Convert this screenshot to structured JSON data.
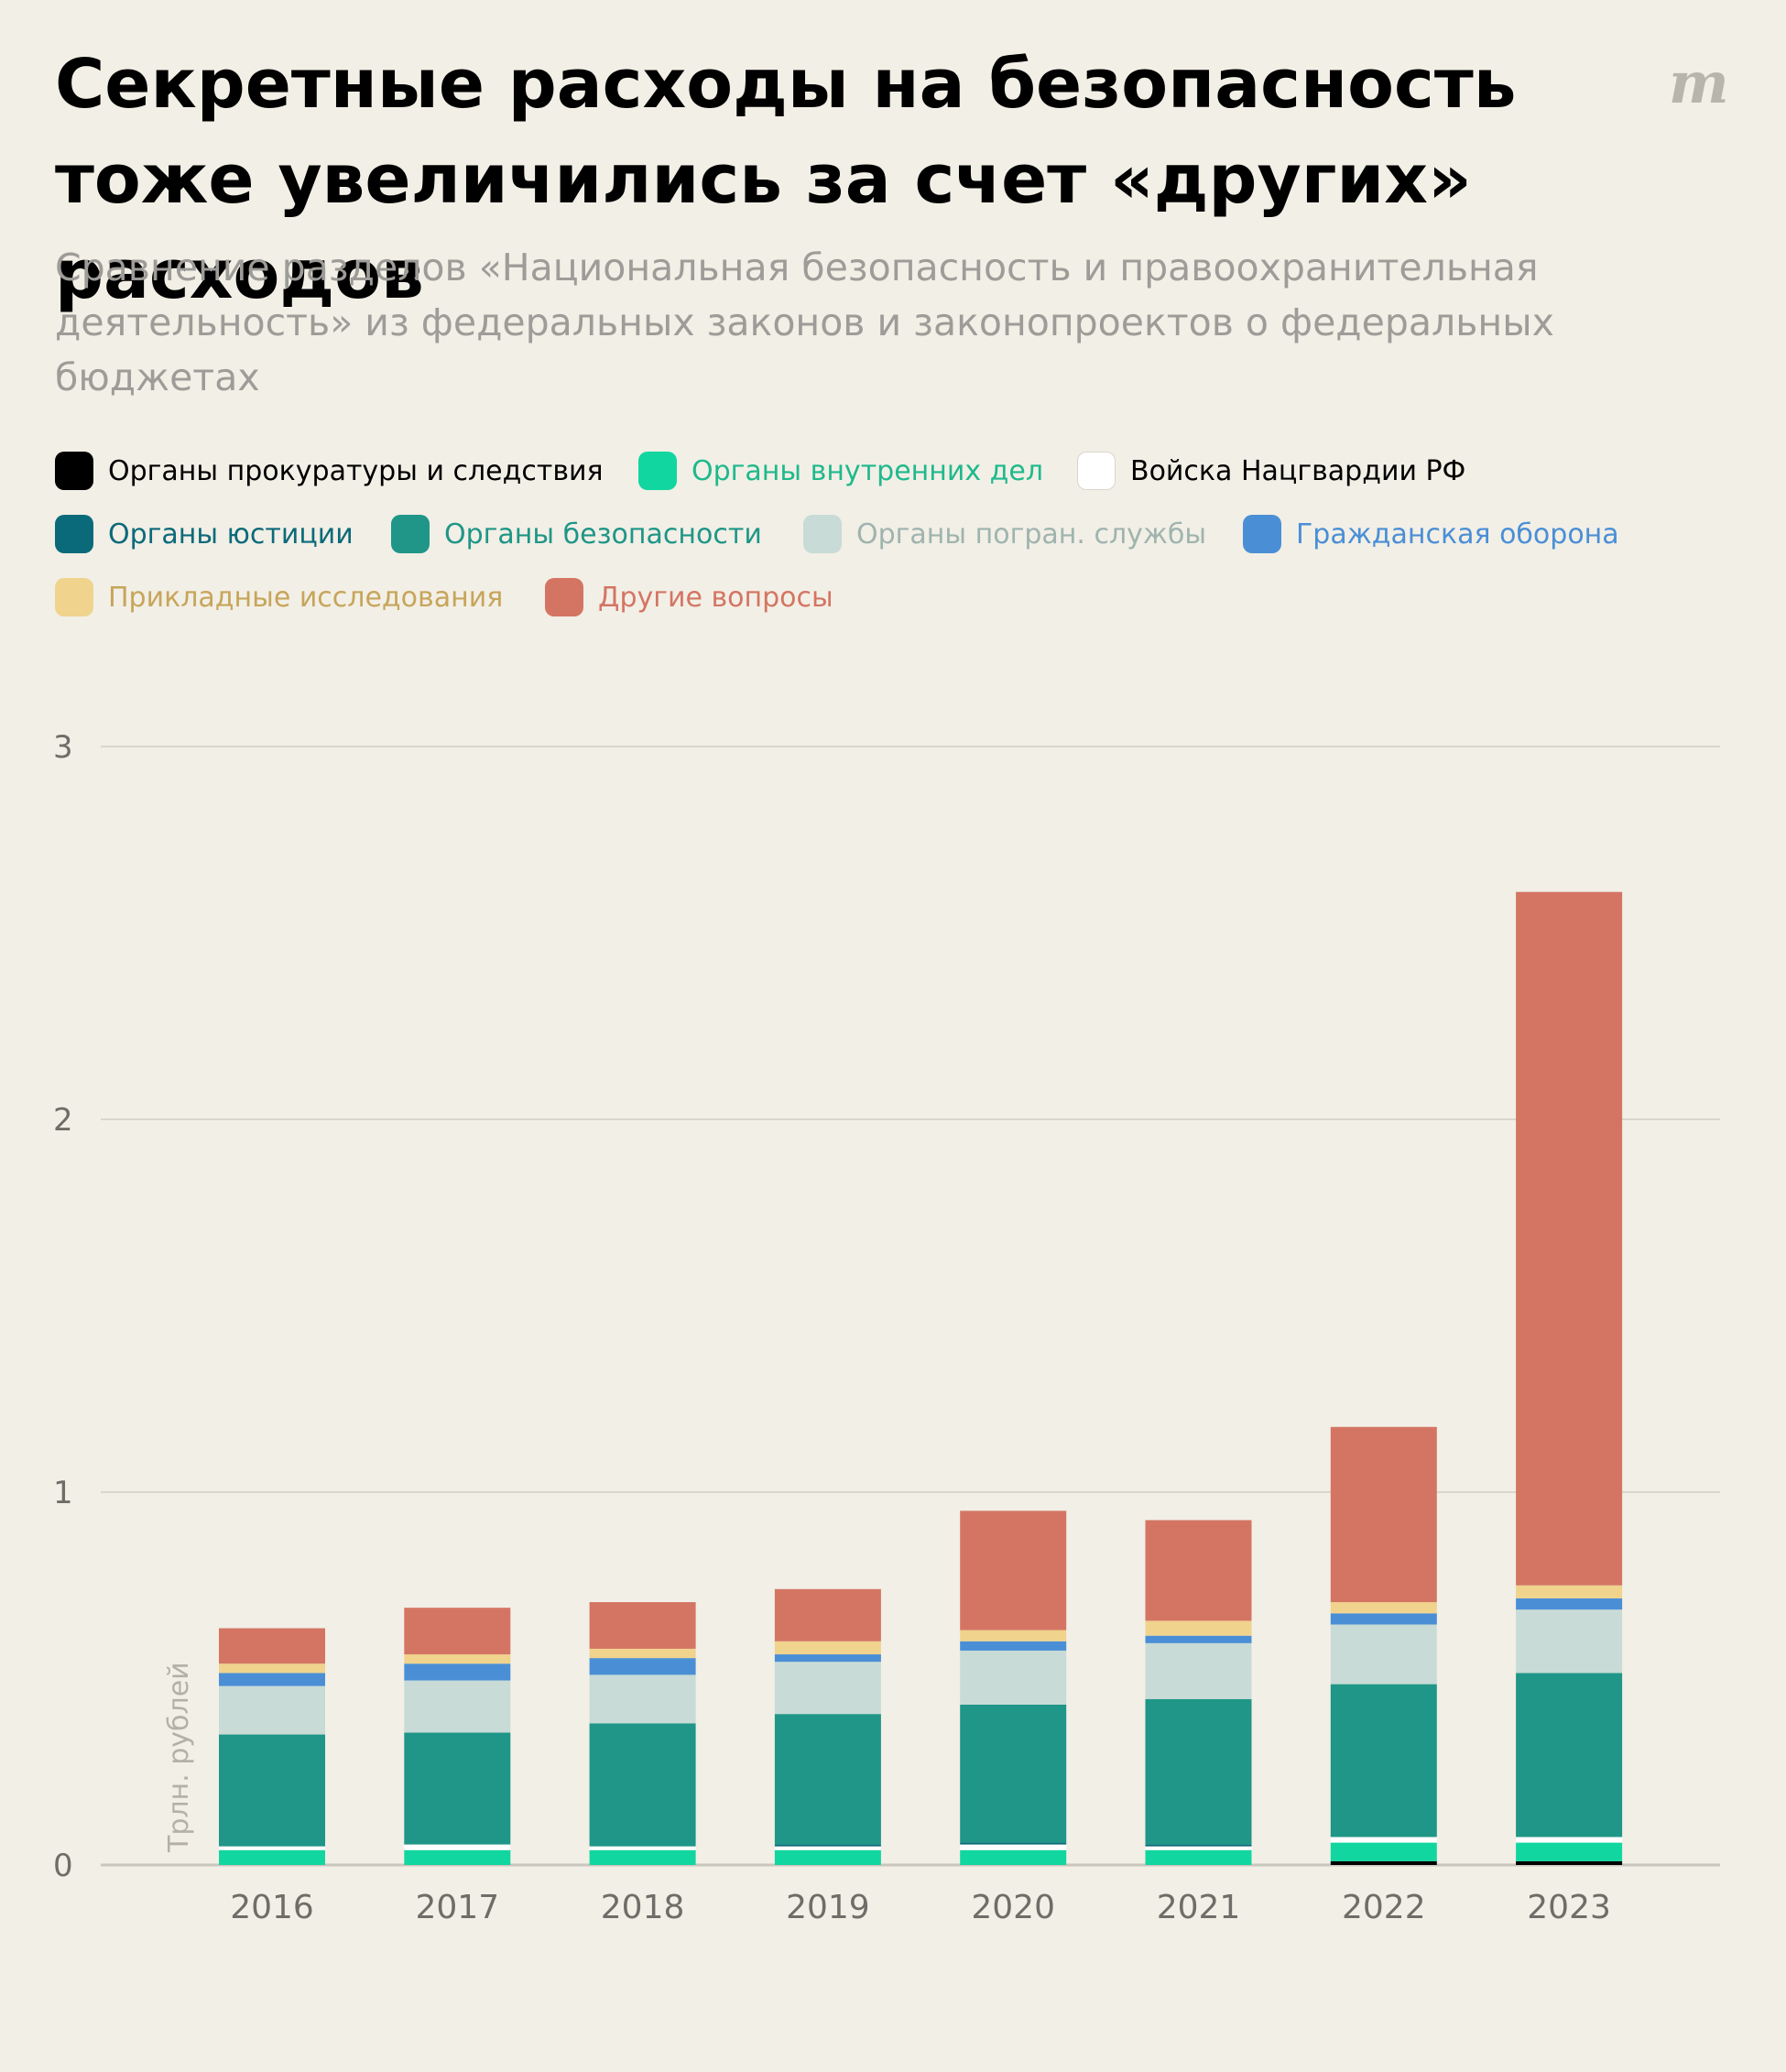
{
  "header": {
    "title": "Секретные расходы на безопасность тоже увеличились за счет «других» расходов",
    "subtitle": "Сравнение разделов «Национальная безопасность и правоохранительная деятельность» из федеральных законов и законопроектов о федеральных бюджетах",
    "logo": "m"
  },
  "legend": [
    {
      "label": "Органы прокуратуры и следствия",
      "color": "#000000",
      "text_color": "#000000"
    },
    {
      "label": "Органы внутренних дел",
      "color": "#12d6a0",
      "text_color": "#1fb98c"
    },
    {
      "label": "Войска Нацгвардии РФ",
      "color": "#ffffff",
      "text_color": "#000000"
    },
    {
      "label": "Органы юстиции",
      "color": "#0b6a7a",
      "text_color": "#0b6a7a"
    },
    {
      "label": "Органы безопасности",
      "color": "#1f9687",
      "text_color": "#1f9687"
    },
    {
      "label": "Органы погран. службы",
      "color": "#c8dbd6",
      "text_color": "#9fb4ae"
    },
    {
      "label": "Гражданская оборона",
      "color": "#4a8fd6",
      "text_color": "#4a8fd6"
    },
    {
      "label": "Прикладные исследования",
      "color": "#f0d38d",
      "text_color": "#c7a55a"
    },
    {
      "label": "Другие вопросы",
      "color": "#d47563",
      "text_color": "#d47563"
    }
  ],
  "chart_data": {
    "type": "bar",
    "stacked": true,
    "ylabel": "Трлн. рублей",
    "ylim": [
      0,
      3
    ],
    "yticks": [
      0,
      1,
      2,
      3
    ],
    "grid": true,
    "legend_position": "top",
    "categories": [
      "2016",
      "2017",
      "2018",
      "2019",
      "2020",
      "2021",
      "2022",
      "2023"
    ],
    "series": [
      {
        "name": "Органы прокуратуры и следствия",
        "color": "#000000",
        "values": [
          0.0,
          0.0,
          0.0,
          0.0,
          0.0,
          0.0,
          0.01,
          0.01
        ]
      },
      {
        "name": "Органы внутренних дел",
        "color": "#12d6a0",
        "values": [
          0.04,
          0.04,
          0.04,
          0.04,
          0.04,
          0.04,
          0.05,
          0.05
        ]
      },
      {
        "name": "Войска Нацгвардии РФ",
        "color": "#ffffff",
        "values": [
          0.01,
          0.015,
          0.01,
          0.01,
          0.015,
          0.01,
          0.015,
          0.015
        ]
      },
      {
        "name": "Органы юстиции",
        "color": "#0b6a7a",
        "values": [
          0.0,
          0.0,
          0.0,
          0.005,
          0.005,
          0.005,
          0.0,
          0.0
        ]
      },
      {
        "name": "Органы безопасности",
        "color": "#1f9687",
        "values": [
          0.3,
          0.3,
          0.33,
          0.35,
          0.37,
          0.39,
          0.41,
          0.44
        ]
      },
      {
        "name": "Органы погран. службы",
        "color": "#c8dbd6",
        "values": [
          0.13,
          0.14,
          0.13,
          0.14,
          0.145,
          0.15,
          0.16,
          0.17
        ]
      },
      {
        "name": "Гражданская оборона",
        "color": "#4a8fd6",
        "values": [
          0.035,
          0.045,
          0.045,
          0.02,
          0.025,
          0.02,
          0.03,
          0.03
        ]
      },
      {
        "name": "Прикладные исследования",
        "color": "#f0d38d",
        "values": [
          0.025,
          0.025,
          0.025,
          0.035,
          0.03,
          0.04,
          0.03,
          0.035
        ]
      },
      {
        "name": "Другие вопросы",
        "color": "#d47563",
        "values": [
          0.095,
          0.125,
          0.125,
          0.14,
          0.32,
          0.27,
          0.47,
          1.86
        ]
      }
    ]
  }
}
